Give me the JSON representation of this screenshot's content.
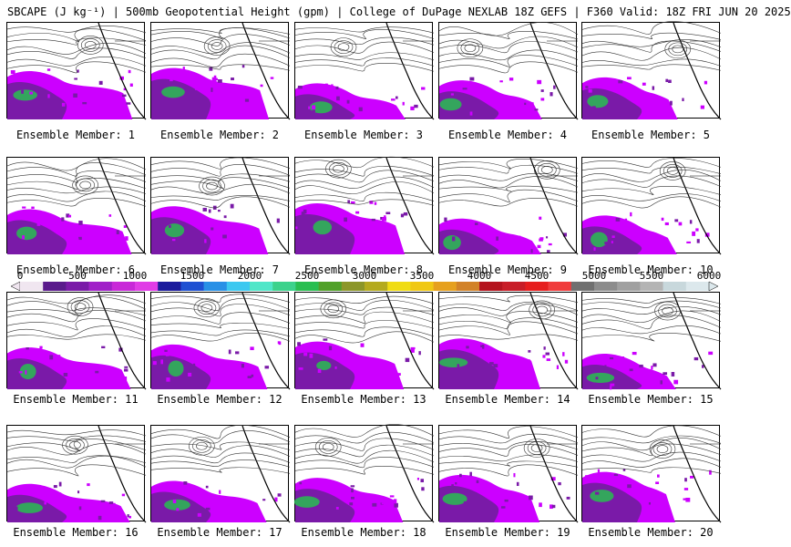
{
  "title": "SBCAPE (J kg⁻¹) | 500mb Geopotential Height (gpm) | College of DuPage NEXLAB 18Z GEFS | F360 Valid: 18Z FRI JUN 20 2025",
  "member_prefix": "Ensemble Member:",
  "members": [
    {
      "id": "1",
      "label": "Ensemble Member: 1"
    },
    {
      "id": "2",
      "label": "Ensemble Member: 2"
    },
    {
      "id": "3",
      "label": "Ensemble Member: 3"
    },
    {
      "id": "4",
      "label": "Ensemble Member: 4"
    },
    {
      "id": "5",
      "label": "Ensemble Member: 5"
    },
    {
      "id": "6",
      "label": "Ensemble Member: 6"
    },
    {
      "id": "7",
      "label": "Ensemble Member: 7"
    },
    {
      "id": "8",
      "label": "Ensemble Member: 8"
    },
    {
      "id": "9",
      "label": "Ensemble Member: 9"
    },
    {
      "id": "10",
      "label": "Ensemble Member: 10"
    },
    {
      "id": "11",
      "label": "Ensemble Member: 11"
    },
    {
      "id": "12",
      "label": "Ensemble Member: 12"
    },
    {
      "id": "13",
      "label": "Ensemble Member: 13"
    },
    {
      "id": "14",
      "label": "Ensemble Member: 14"
    },
    {
      "id": "15",
      "label": "Ensemble Member: 15"
    },
    {
      "id": "16",
      "label": "Ensemble Member: 16"
    },
    {
      "id": "17",
      "label": "Ensemble Member: 17"
    },
    {
      "id": "18",
      "label": "Ensemble Member: 18"
    },
    {
      "id": "19",
      "label": "Ensemble Member: 19"
    },
    {
      "id": "20",
      "label": "Ensemble Member: 20"
    }
  ],
  "colorbar": {
    "min": 0,
    "max": 6000,
    "tick_labels": [
      "0",
      "500",
      "1000",
      "1500",
      "2000",
      "2500",
      "3000",
      "3500",
      "4000",
      "4500",
      "5000",
      "5500",
      "6000"
    ],
    "colors": [
      "#f0e6f0",
      "#5a1a8c",
      "#7a1aa8",
      "#a020c8",
      "#c828d8",
      "#e03ce6",
      "#1a1a9c",
      "#1e50d2",
      "#2890e6",
      "#3cc8f0",
      "#50e6c8",
      "#3cd28c",
      "#28be50",
      "#50a028",
      "#8c9628",
      "#b4aa1e",
      "#f0dc14",
      "#f0c814",
      "#e6a01e",
      "#d28228",
      "#b4141e",
      "#c81e28",
      "#e61e1e",
      "#f03c3c",
      "#707070",
      "#8c8c8c",
      "#a0a0a0",
      "#b4b4b4",
      "#c8d8dc",
      "#dce8ec"
    ]
  },
  "legend_colors": {
    "cape_low": "#cc00ff",
    "cape_mid": "#7a1aa8",
    "cape_high": "#28be50",
    "contour": "#000000"
  }
}
